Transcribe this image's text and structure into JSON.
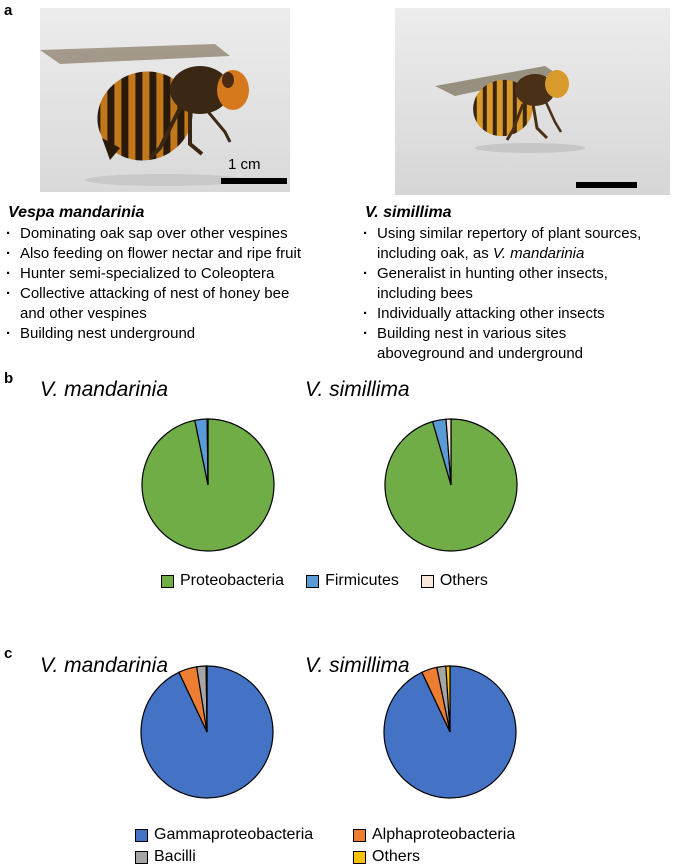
{
  "panel_labels": {
    "a": "a",
    "b": "b",
    "c": "c"
  },
  "panel_a": {
    "scale_bar": "1 cm",
    "species1": {
      "name": "Vespa mandarinia",
      "traits": [
        "Dominating oak sap over other vespines",
        "Also feeding on flower nectar and ripe fruit",
        "Hunter semi-specialized to Coleoptera",
        "Collective attacking of nest of honey bee",
        "and other vespines",
        "Building nest underground"
      ]
    },
    "species2": {
      "name": "V. simillima",
      "traits": [
        "Using similar repertory of plant sources,",
        "including oak, as",
        "V. mandarinia",
        "Generalist in hunting other insects,",
        "including bees",
        "Individually attacking other insects",
        "Building nest in various sites",
        "aboveground and underground"
      ]
    }
  },
  "colors": {
    "proteobacteria": "#70AD47",
    "firmicutes": "#5B9BD5",
    "others_b": "#F8E8DC",
    "gammaproteobacteria": "#4472C4",
    "alphaproteobacteria": "#ED7D31",
    "bacilli": "#A5A5A5",
    "others_c": "#FFC000"
  },
  "chart_data": [
    {
      "type": "pie",
      "panel": "b",
      "title": "V. mandarinia",
      "labels": [
        "Proteobacteria",
        "Firmicutes",
        "Others"
      ],
      "values": [
        96.8,
        3.0,
        0.2
      ]
    },
    {
      "type": "pie",
      "panel": "b",
      "title": "V. simillima",
      "labels": [
        "Proteobacteria",
        "Firmicutes",
        "Others"
      ],
      "values": [
        95.5,
        3.3,
        1.2
      ]
    },
    {
      "type": "pie",
      "panel": "c",
      "title": "V. mandarinia",
      "labels": [
        "Gammaproteobacteria",
        "Alphaproteobacteria",
        "Bacilli",
        "Others"
      ],
      "values": [
        93.0,
        4.5,
        2.3,
        0.2
      ]
    },
    {
      "type": "pie",
      "panel": "c",
      "title": "V. simillima",
      "labels": [
        "Gammaproteobacteria",
        "Alphaproteobacteria",
        "Bacilli",
        "Others"
      ],
      "values": [
        93.0,
        3.8,
        2.2,
        1.0
      ]
    }
  ],
  "legend_b": [
    "Proteobacteria",
    "Firmicutes",
    "Others"
  ],
  "legend_c": [
    "Gammaproteobacteria",
    "Alphaproteobacteria",
    "Bacilli",
    "Others"
  ]
}
